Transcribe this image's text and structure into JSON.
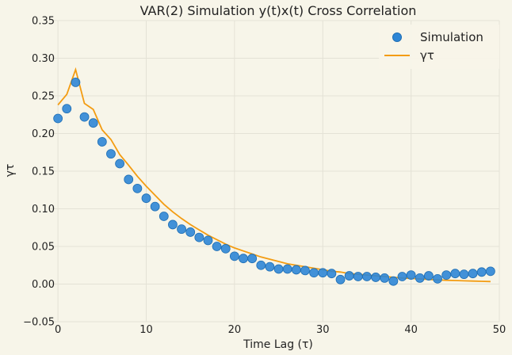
{
  "chart_data": {
    "type": "scatter",
    "title": "VAR(2) Simulation y(t)x(t) Cross Correlation",
    "xlabel": "Time Lag (τ)",
    "ylabel": "γτ",
    "xlim": [
      -1,
      50
    ],
    "ylim": [
      -0.05,
      0.35
    ],
    "xticks": [
      0,
      10,
      20,
      30,
      40,
      50
    ],
    "yticks": [
      -0.05,
      0.0,
      0.05,
      0.1,
      0.15,
      0.2,
      0.25,
      0.3,
      0.35
    ],
    "ytick_labels": [
      "−0.05",
      "0.00",
      "0.05",
      "0.10",
      "0.15",
      "0.20",
      "0.25",
      "0.30",
      "0.35"
    ],
    "grid": true,
    "legend_position": "top-right",
    "series": [
      {
        "name": "Simulation",
        "kind": "scatter",
        "color": "#2e86d6",
        "x": [
          0,
          1,
          2,
          3,
          4,
          5,
          6,
          7,
          8,
          9,
          10,
          11,
          12,
          13,
          14,
          15,
          16,
          17,
          18,
          19,
          20,
          21,
          22,
          23,
          24,
          25,
          26,
          27,
          28,
          29,
          30,
          31,
          32,
          33,
          34,
          35,
          36,
          37,
          38,
          39,
          40,
          41,
          42,
          43,
          44,
          45,
          46,
          47,
          48,
          49
        ],
        "y": [
          0.22,
          0.233,
          0.268,
          0.222,
          0.214,
          0.189,
          0.173,
          0.16,
          0.139,
          0.127,
          0.114,
          0.103,
          0.09,
          0.079,
          0.073,
          0.069,
          0.062,
          0.058,
          0.05,
          0.047,
          0.037,
          0.034,
          0.034,
          0.025,
          0.023,
          0.02,
          0.02,
          0.019,
          0.018,
          0.015,
          0.015,
          0.014,
          0.006,
          0.011,
          0.01,
          0.01,
          0.009,
          0.008,
          0.004,
          0.01,
          0.012,
          0.008,
          0.011,
          0.007,
          0.012,
          0.014,
          0.013,
          0.014,
          0.016,
          0.017
        ]
      },
      {
        "name": "γτ",
        "kind": "line",
        "color": "#f39c12",
        "x": [
          0,
          1,
          2,
          3,
          4,
          5,
          6,
          7,
          8,
          9,
          10,
          11,
          12,
          13,
          14,
          15,
          16,
          17,
          18,
          19,
          20,
          21,
          22,
          23,
          24,
          25,
          26,
          27,
          28,
          29,
          30,
          31,
          32,
          33,
          34,
          35,
          36,
          37,
          38,
          39,
          40,
          41,
          42,
          43,
          44,
          45,
          46,
          47,
          48,
          49
        ],
        "y": [
          0.238,
          0.252,
          0.285,
          0.24,
          0.232,
          0.205,
          0.192,
          0.172,
          0.158,
          0.143,
          0.13,
          0.118,
          0.106,
          0.096,
          0.087,
          0.079,
          0.072,
          0.065,
          0.059,
          0.053,
          0.048,
          0.044,
          0.04,
          0.036,
          0.033,
          0.03,
          0.027,
          0.025,
          0.023,
          0.021,
          0.019,
          0.017,
          0.016,
          0.014,
          0.013,
          0.012,
          0.011,
          0.01,
          0.009,
          0.008,
          0.0075,
          0.0068,
          0.0062,
          0.0056,
          0.0051,
          0.0047,
          0.0043,
          0.004,
          0.0037,
          0.0034
        ]
      }
    ]
  }
}
